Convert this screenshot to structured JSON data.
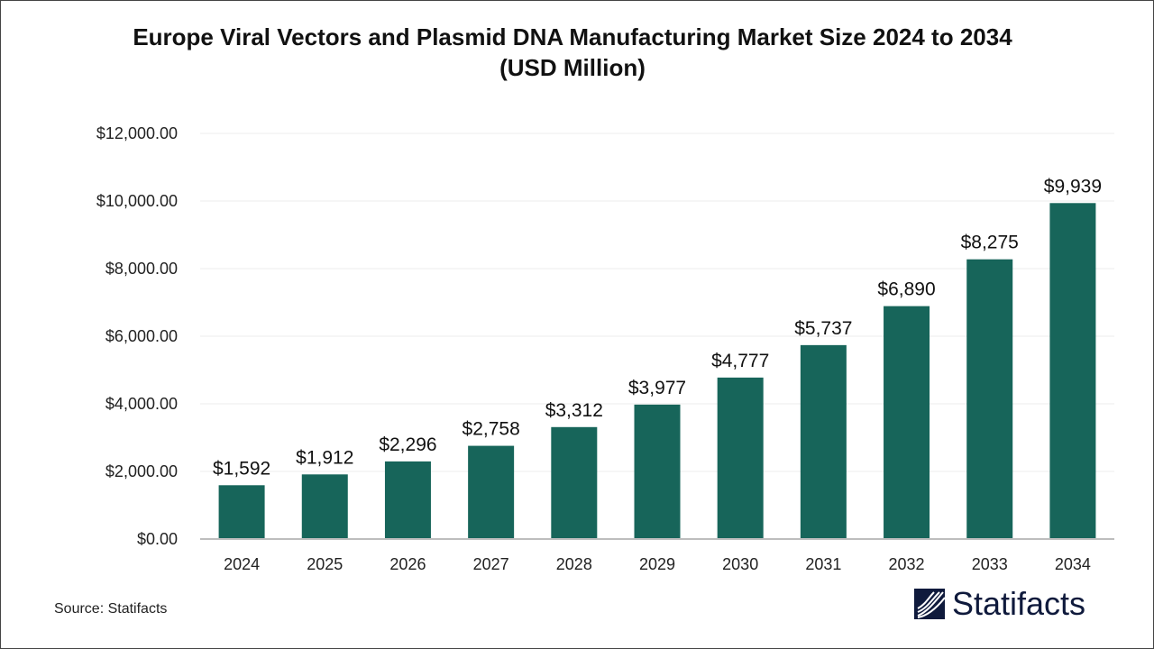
{
  "chart_data": {
    "type": "bar",
    "title": "Europe Viral Vectors and Plasmid DNA Manufacturing Market Size 2024 to 2034",
    "subtitle": "(USD Million)",
    "categories": [
      "2024",
      "2025",
      "2026",
      "2027",
      "2028",
      "2029",
      "2030",
      "2031",
      "2032",
      "2033",
      "2034"
    ],
    "values": [
      1592,
      1912,
      2296,
      2758,
      3312,
      3977,
      4777,
      5737,
      6890,
      8275,
      9939
    ],
    "data_labels": [
      "$1,592",
      "$1,912",
      "$2,296",
      "$2,758",
      "$3,312",
      "$3,977",
      "$4,777",
      "$5,737",
      "$6,890",
      "$8,275",
      "$9,939"
    ],
    "y_ticks": [
      0,
      2000,
      4000,
      6000,
      8000,
      10000,
      12000
    ],
    "y_tick_labels": [
      "$0.00",
      "$2,000.00",
      "$4,000.00",
      "$6,000.00",
      "$8,000.00",
      "$10,000.00",
      "$12,000.00"
    ],
    "ylim": [
      0,
      12000
    ],
    "xlabel": "",
    "ylabel": "",
    "grid": true,
    "legend": "none",
    "bar_color": "#17655a"
  },
  "source": "Source: Statifacts",
  "logo": {
    "text": "Statifacts",
    "color": "#0f1a3c"
  }
}
